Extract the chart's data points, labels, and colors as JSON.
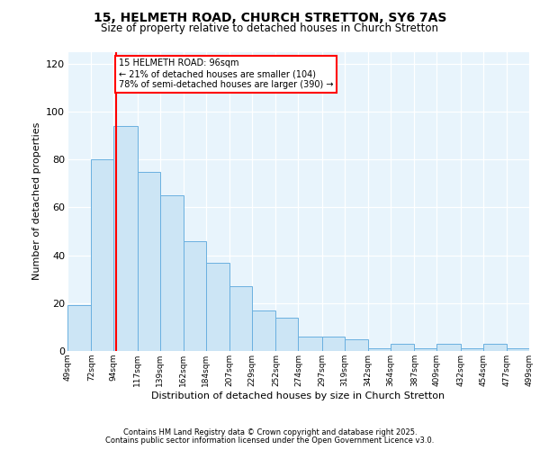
{
  "title1": "15, HELMETH ROAD, CHURCH STRETTON, SY6 7AS",
  "title2": "Size of property relative to detached houses in Church Stretton",
  "xlabel": "Distribution of detached houses by size in Church Stretton",
  "ylabel": "Number of detached properties",
  "bar_bins_left": [
    49,
    72,
    94,
    117,
    139,
    162,
    184,
    207,
    229,
    252,
    274,
    297,
    319,
    342,
    364,
    387,
    409,
    432,
    454,
    477,
    499
  ],
  "bar_heights": [
    19,
    80,
    94,
    75,
    65,
    46,
    37,
    27,
    17,
    14,
    6,
    6,
    5,
    1,
    3,
    1,
    3,
    1,
    3,
    1
  ],
  "bar_color": "#cce5f5",
  "bar_edge_color": "#6ab0e0",
  "red_line_x": 96,
  "annotation_line1": "15 HELMETH ROAD: 96sqm",
  "annotation_line2": "← 21% of detached houses are smaller (104)",
  "annotation_line3": "78% of semi-detached houses are larger (390) →",
  "annotation_box_color": "white",
  "annotation_box_edge": "red",
  "ylim": [
    0,
    125
  ],
  "yticks": [
    0,
    20,
    40,
    60,
    80,
    100,
    120
  ],
  "footer1": "Contains HM Land Registry data © Crown copyright and database right 2025.",
  "footer2": "Contains public sector information licensed under the Open Government Licence v3.0.",
  "plot_bg": "#e8f4fc"
}
